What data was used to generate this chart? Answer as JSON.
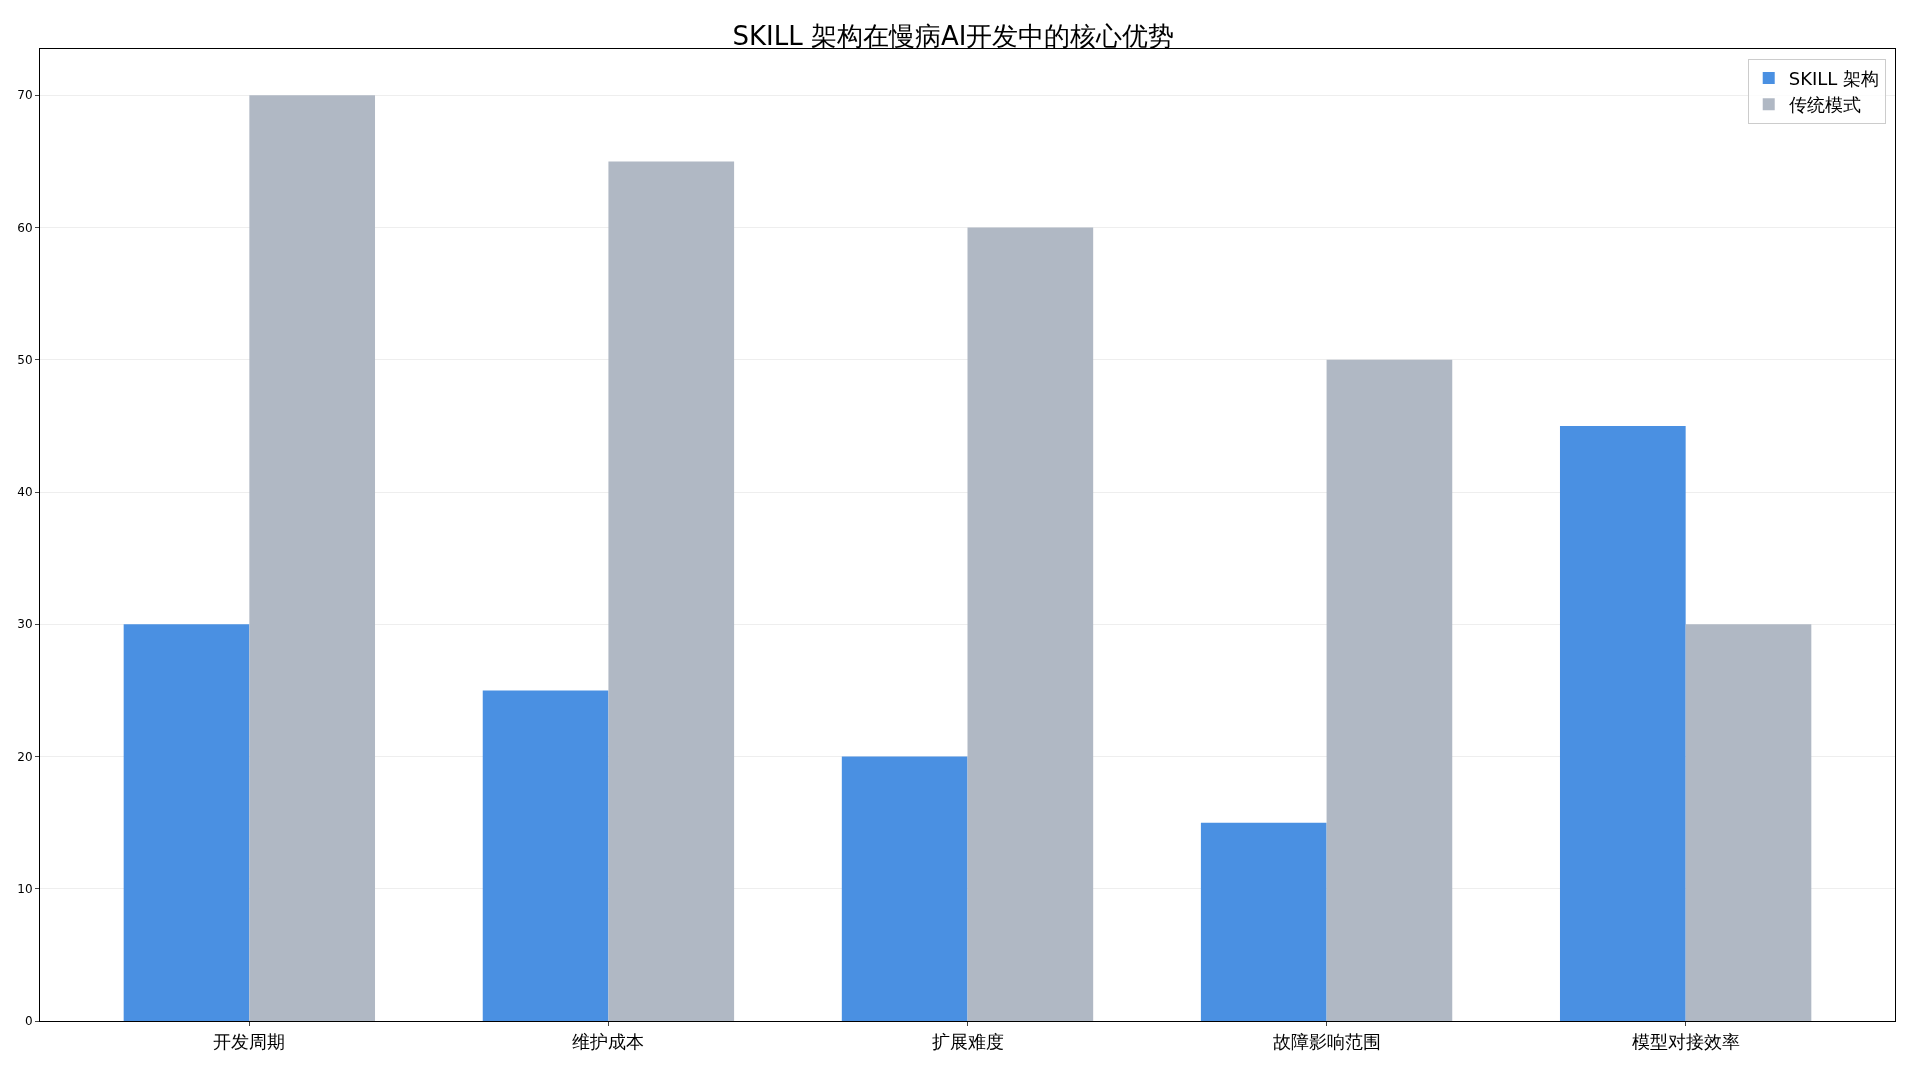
{
  "chart_data": {
    "type": "bar",
    "title": "SKILL 架构在慢病AI开发中的核心优势",
    "categories": [
      "开发周期",
      "维护成本",
      "扩展难度",
      "故障影响范围",
      "模型对接效率"
    ],
    "series": [
      {
        "name": "SKILL 架构",
        "color": "#4a90e2",
        "values": [
          30,
          25,
          20,
          15,
          45
        ]
      },
      {
        "name": "传统模式",
        "color": "#b0b8c4",
        "values": [
          70,
          65,
          60,
          50,
          30
        ]
      }
    ],
    "ylim": [
      0,
      73.5
    ],
    "yticks": [
      0,
      10,
      20,
      30,
      40,
      50,
      60,
      70
    ],
    "grid": "y",
    "legend": "top right"
  }
}
